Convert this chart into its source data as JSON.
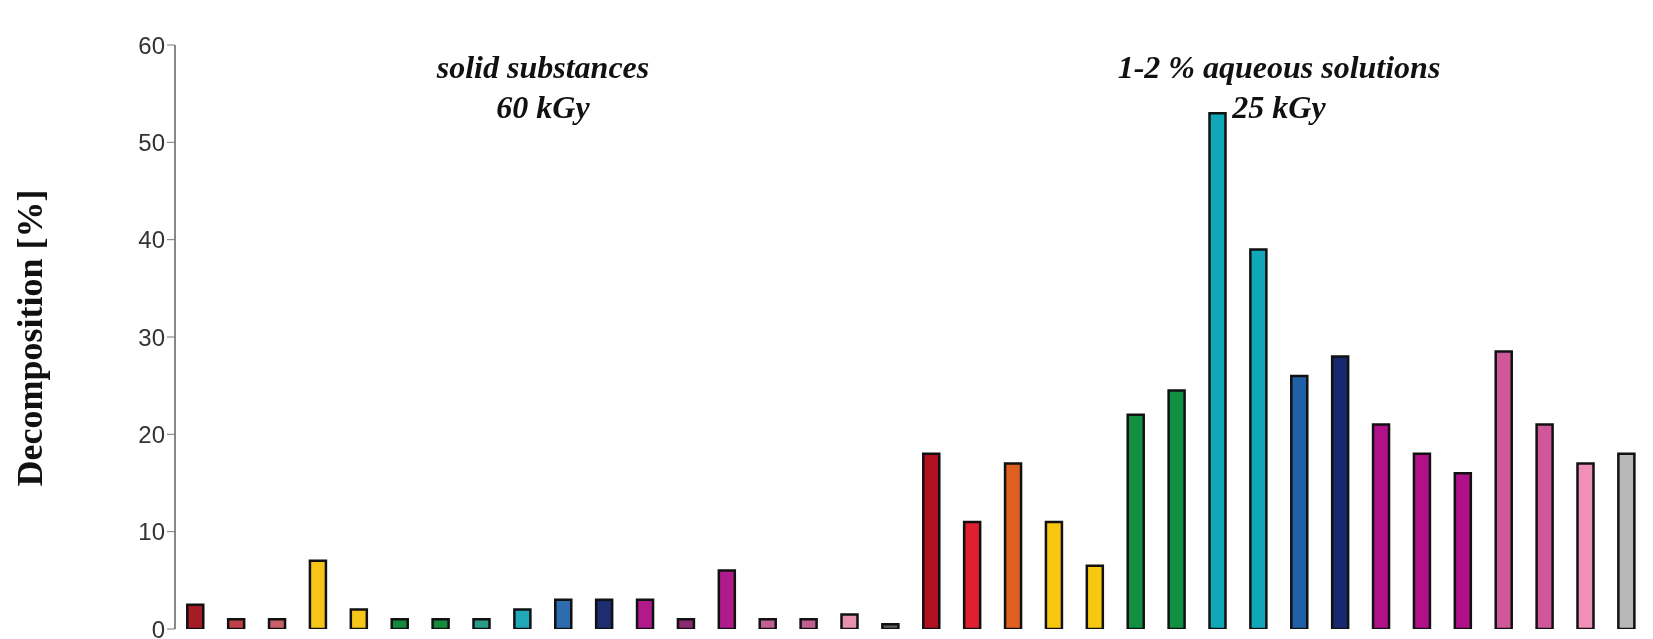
{
  "chart_data": {
    "type": "bar",
    "ylabel": "Decomposition [%]",
    "annotations": [
      "solid substances\n60 kGy",
      "1-2 % aqueous solutions\n25 kGy"
    ],
    "categories": [
      null,
      null,
      null,
      null,
      null,
      null,
      null,
      null,
      null,
      null,
      null,
      null,
      null,
      null,
      null,
      null,
      null,
      null,
      null,
      null,
      null,
      null,
      null,
      null,
      null,
      null,
      null,
      null,
      null,
      null,
      null,
      null,
      null,
      null,
      null,
      null
    ],
    "values": [
      2.5,
      1,
      1,
      7,
      2,
      1,
      1,
      1,
      2,
      3,
      3,
      3,
      1,
      6,
      1,
      1,
      1.5,
      0.5,
      18,
      11,
      17,
      11,
      6.5,
      22,
      24.5,
      53,
      39,
      26,
      28,
      21,
      18,
      16,
      28.5,
      21,
      17,
      18
    ],
    "colors": [
      "#a51c24",
      "#c0404a",
      "#c8606a",
      "#f5c518",
      "#f5c518",
      "#168a3c",
      "#168a3c",
      "#2a9a8a",
      "#20a8b8",
      "#2e6cb0",
      "#1e2c70",
      "#b01a8a",
      "#8a2a70",
      "#b01a8a",
      "#c06090",
      "#c06090",
      "#e890b0",
      "#606060",
      "#b01020",
      "#e02030",
      "#e06020",
      "#f8c810",
      "#f8c810",
      "#109040",
      "#109040",
      "#10a8b8",
      "#10a8b8",
      "#2060a8",
      "#182870",
      "#b01088",
      "#b01088",
      "#b01088",
      "#d0589a",
      "#d0589a",
      "#f090b8",
      "#b8b8b8"
    ],
    "ylim": [
      0,
      60
    ],
    "yticks": [
      0,
      10,
      20,
      30,
      40,
      50,
      60
    ],
    "tick_labels": "y"
  }
}
